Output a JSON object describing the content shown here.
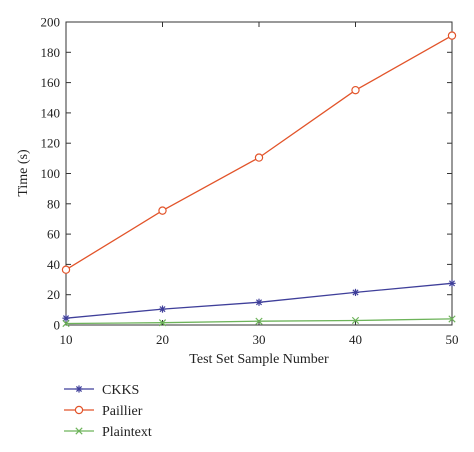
{
  "chart_data": {
    "type": "line",
    "xlabel": "Test Set Sample Number",
    "ylabel": "Time (s)",
    "x": [
      10,
      20,
      30,
      40,
      50
    ],
    "xlim": [
      10,
      50
    ],
    "ylim": [
      0,
      200
    ],
    "xticks": [
      "10",
      "20",
      "30",
      "40",
      "50"
    ],
    "yticks": [
      "0",
      "20",
      "40",
      "60",
      "80",
      "100",
      "120",
      "140",
      "160",
      "180",
      "200"
    ],
    "grid": false,
    "legend_position": "below-left",
    "series": [
      {
        "name": "CKKS",
        "values": [
          4.5,
          10.5,
          15,
          21.5,
          27.5
        ],
        "color": "#3f3f9a",
        "marker": "star"
      },
      {
        "name": "Paillier",
        "values": [
          36.5,
          75.5,
          110.5,
          155,
          191
        ],
        "color": "#e2542a",
        "marker": "circle"
      },
      {
        "name": "Plaintext",
        "values": [
          1,
          1.5,
          2.5,
          3,
          4
        ],
        "color": "#6db35a",
        "marker": "x"
      }
    ]
  }
}
